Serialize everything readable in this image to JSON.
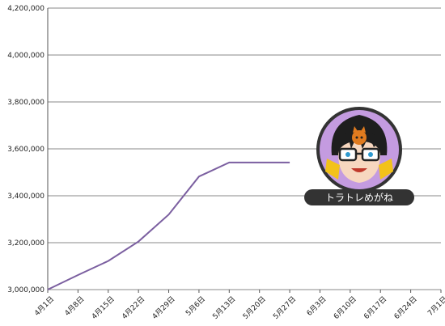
{
  "chart_data": {
    "type": "line",
    "x_categories": [
      "4月1日",
      "4月8日",
      "4月15日",
      "4月22日",
      "4月29日",
      "5月6日",
      "5月13日",
      "5月20日",
      "5月27日",
      "6月3日",
      "6月10日",
      "6月17日",
      "6月24日",
      "7月1日"
    ],
    "y_ticks": [
      "4,200,000",
      "4,000,000",
      "3,800,000",
      "3,600,000",
      "3,400,000",
      "3,200,000",
      "3,000,000"
    ],
    "ylim": [
      3000000,
      4200000
    ],
    "grid": true,
    "series": [
      {
        "color": "#7b5fa0",
        "values": [
          3000000,
          3062000,
          3122000,
          3205000,
          3320000,
          3482000,
          3542000,
          3542000,
          3542000
        ]
      }
    ]
  },
  "watermark": {
    "label": "トラトレめがね",
    "icon": "avatar-glasses-cat-icon",
    "ring_color": "#333333",
    "bg_color": "#c49be0"
  }
}
